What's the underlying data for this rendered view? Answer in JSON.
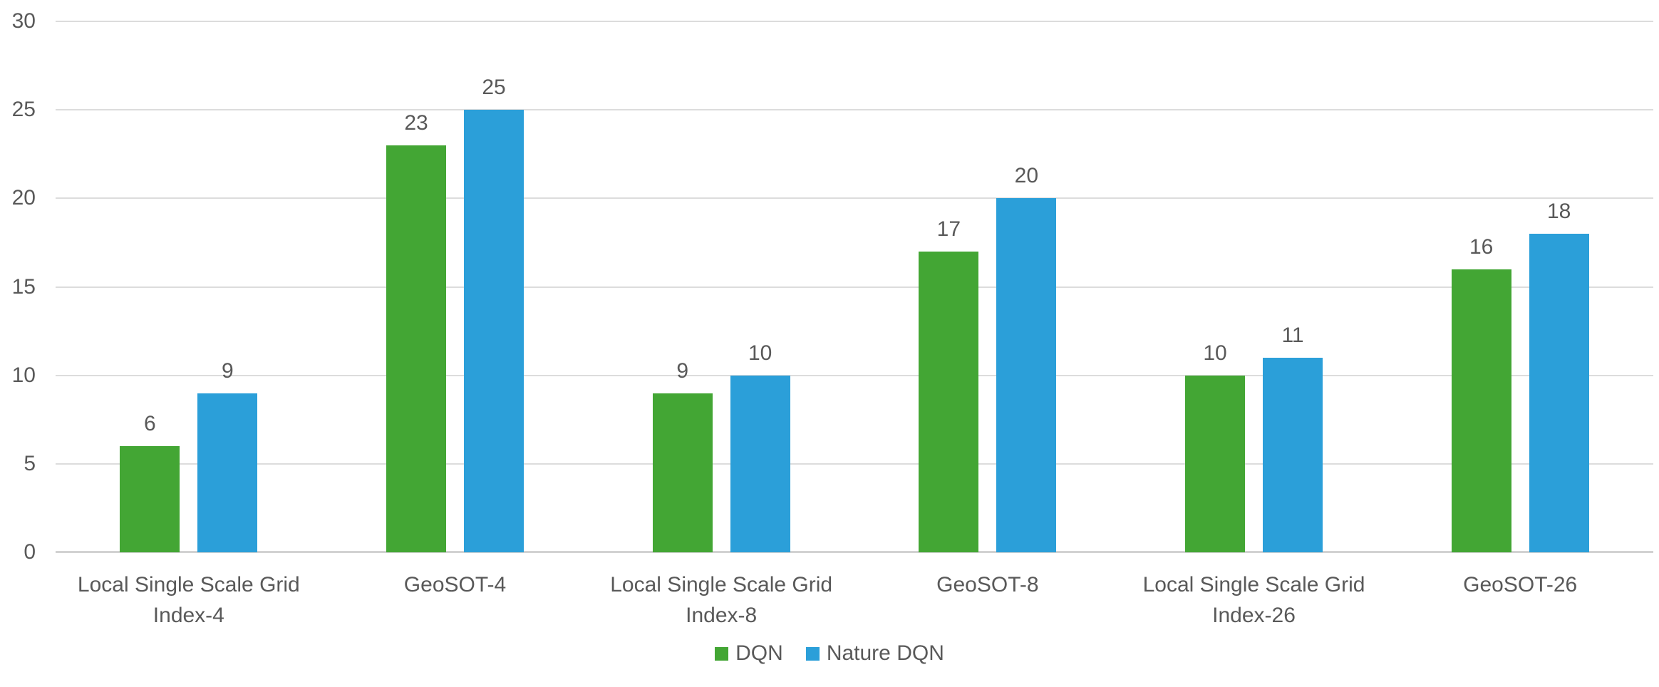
{
  "chart_data": {
    "type": "bar",
    "title": "",
    "xlabel": "",
    "ylabel": "",
    "categories": [
      "Local Single Scale Grid Index-4",
      "GeoSOT-4",
      "Local Single Scale Grid Index-8",
      "GeoSOT-8",
      "Local Single Scale Grid Index-26",
      "GeoSOT-26"
    ],
    "categories_lines": [
      [
        "Local Single Scale Grid",
        "Index-4"
      ],
      [
        "GeoSOT-4"
      ],
      [
        "Local Single Scale Grid",
        "Index-8"
      ],
      [
        "GeoSOT-8"
      ],
      [
        "Local Single Scale Grid",
        "Index-26"
      ],
      [
        "GeoSOT-26"
      ]
    ],
    "series": [
      {
        "name": "DQN",
        "color": "#43A634",
        "values": [
          6,
          23,
          9,
          17,
          10,
          16
        ]
      },
      {
        "name": "Nature DQN",
        "color": "#2B9FD9",
        "values": [
          9,
          25,
          10,
          20,
          11,
          18
        ]
      }
    ],
    "ylim": [
      0,
      30
    ],
    "yticks": [
      0,
      5,
      10,
      15,
      20,
      25,
      30
    ],
    "grid": true,
    "bar_value_labels": true,
    "legend_position": "bottom-center",
    "colors": {
      "gridline": "#DCDCDC",
      "axis_line": "#D2D2D2",
      "text": "#595959",
      "background": "#FFFFFF"
    }
  }
}
